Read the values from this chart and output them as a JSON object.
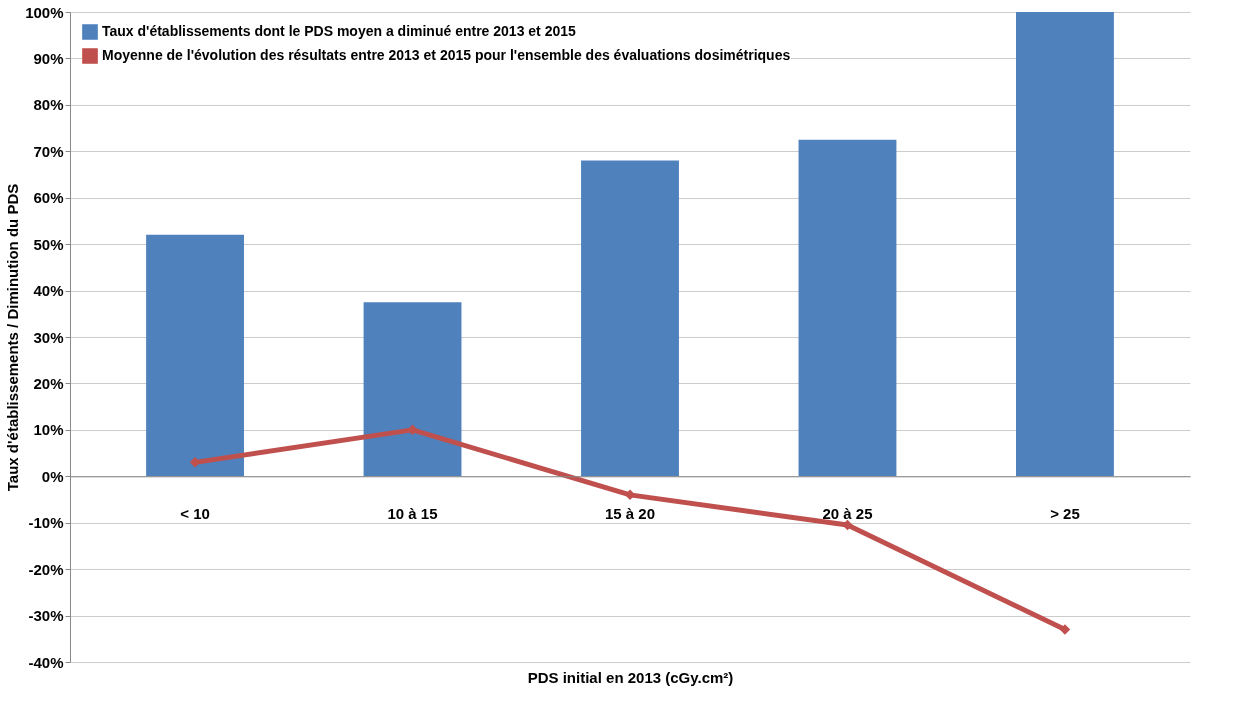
{
  "chart_data": {
    "type": "bar",
    "xlabel": "PDS initial en 2013 (cGy.cm²)",
    "ylabel": "Taux d'établissements / Diminution du PDS",
    "categories": [
      "< 10",
      "10 à 15",
      "15 à 20",
      "20 à 25",
      "> 25"
    ],
    "series": [
      {
        "name": "Taux d'établissements dont le PDS moyen a diminué entre 2013 et 2015",
        "color": "#4f81bd",
        "values": [
          52,
          37.5,
          68,
          72.5,
          100
        ]
      },
      {
        "name": "Moyenne de l'évolution des résultats entre 2013 et 2015 pour l'ensemble des évaluations dosimétriques",
        "type": "line",
        "color": "#c0504d",
        "marker": "diamond",
        "values": [
          3,
          10,
          -4,
          -10.5,
          -33
        ]
      }
    ],
    "ylim": [
      -40,
      100
    ],
    "yticks": [
      {
        "value": -40,
        "label": "-40%"
      },
      {
        "value": -30,
        "label": "-30%"
      },
      {
        "value": -20,
        "label": "-20%"
      },
      {
        "value": -10,
        "label": "-10%"
      },
      {
        "value": 0,
        "label": "0%"
      },
      {
        "value": 10,
        "label": "10%"
      },
      {
        "value": 20,
        "label": "20%"
      },
      {
        "value": 30,
        "label": "30%"
      },
      {
        "value": 40,
        "label": "40%"
      },
      {
        "value": 50,
        "label": "50%"
      },
      {
        "value": 60,
        "label": "60%"
      },
      {
        "value": 70,
        "label": "70%"
      },
      {
        "value": 80,
        "label": "80%"
      },
      {
        "value": 90,
        "label": "90%"
      },
      {
        "value": 100,
        "label": "100%"
      }
    ],
    "grid": "y",
    "legend": "top left"
  }
}
